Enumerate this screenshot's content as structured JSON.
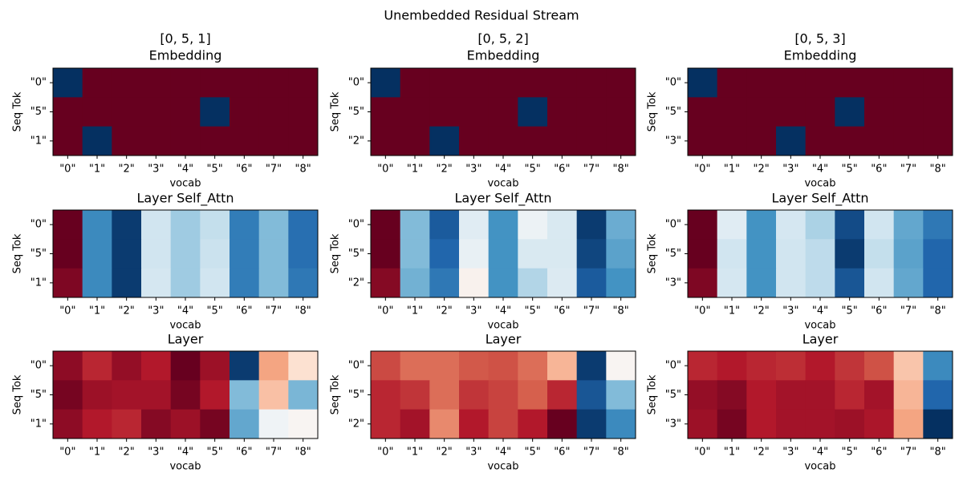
{
  "title": "Unembedded Residual Stream",
  "chart_data": [
    {
      "type": "heatmap",
      "title": "[0, 5, 1]",
      "subtitle": "Embedding",
      "x_label": "vocab",
      "y_label": "Seq Tok",
      "colormap": "RdBu",
      "vlim": [
        0,
        1
      ],
      "categories": [
        "\"0\"",
        "\"1\"",
        "\"2\"",
        "\"3\"",
        "\"4\"",
        "\"5\"",
        "\"6\"",
        "\"7\"",
        "\"8\""
      ],
      "rows": [
        "\"0\"",
        "\"5\"",
        "\"1\""
      ],
      "values": [
        [
          1,
          0,
          0,
          0,
          0,
          0,
          0,
          0,
          0
        ],
        [
          0,
          0,
          0,
          0,
          0,
          1,
          0,
          0,
          0
        ],
        [
          0,
          1,
          0,
          0,
          0,
          0,
          0,
          0,
          0
        ]
      ]
    },
    {
      "type": "heatmap",
      "title": "[0, 5, 2]",
      "subtitle": "Embedding",
      "x_label": "vocab",
      "y_label": "Seq Tok",
      "colormap": "RdBu",
      "vlim": [
        0,
        1
      ],
      "categories": [
        "\"0\"",
        "\"1\"",
        "\"2\"",
        "\"3\"",
        "\"4\"",
        "\"5\"",
        "\"6\"",
        "\"7\"",
        "\"8\""
      ],
      "rows": [
        "\"0\"",
        "\"5\"",
        "\"2\""
      ],
      "values": [
        [
          1,
          0,
          0,
          0,
          0,
          0,
          0,
          0,
          0
        ],
        [
          0,
          0,
          0,
          0,
          0,
          1,
          0,
          0,
          0
        ],
        [
          0,
          0,
          1,
          0,
          0,
          0,
          0,
          0,
          0
        ]
      ]
    },
    {
      "type": "heatmap",
      "title": "[0, 5, 3]",
      "subtitle": "Embedding",
      "x_label": "vocab",
      "y_label": "Seq Tok",
      "colormap": "RdBu",
      "vlim": [
        0,
        1
      ],
      "categories": [
        "\"0\"",
        "\"1\"",
        "\"2\"",
        "\"3\"",
        "\"4\"",
        "\"5\"",
        "\"6\"",
        "\"7\"",
        "\"8\""
      ],
      "rows": [
        "\"0\"",
        "\"5\"",
        "\"3\""
      ],
      "values": [
        [
          1,
          0,
          0,
          0,
          0,
          0,
          0,
          0,
          0
        ],
        [
          0,
          0,
          0,
          0,
          0,
          1,
          0,
          0,
          0
        ],
        [
          0,
          0,
          0,
          1,
          0,
          0,
          0,
          0,
          0
        ]
      ]
    },
    {
      "type": "heatmap",
      "title": "Layer Self_Attn",
      "x_label": "vocab",
      "y_label": "Seq Tok",
      "colormap": "RdBu",
      "vlim": [
        0,
        1
      ],
      "categories": [
        "\"0\"",
        "\"1\"",
        "\"2\"",
        "\"3\"",
        "\"4\"",
        "\"5\"",
        "\"6\"",
        "\"7\"",
        "\"8\""
      ],
      "rows": [
        "\"0\"",
        "\"5\"",
        "\"1\""
      ],
      "values": [
        [
          0,
          0.82,
          0.98,
          0.6,
          0.68,
          0.62,
          0.85,
          0.72,
          0.88
        ],
        [
          0,
          0.82,
          0.98,
          0.6,
          0.68,
          0.61,
          0.85,
          0.72,
          0.88
        ],
        [
          0.03,
          0.82,
          0.98,
          0.59,
          0.68,
          0.6,
          0.85,
          0.72,
          0.86
        ]
      ]
    },
    {
      "type": "heatmap",
      "title": "Layer Self_Attn",
      "x_label": "vocab",
      "y_label": "Seq Tok",
      "colormap": "RdBu",
      "vlim": [
        0,
        1
      ],
      "categories": [
        "\"0\"",
        "\"1\"",
        "\"2\"",
        "\"3\"",
        "\"4\"",
        "\"5\"",
        "\"6\"",
        "\"7\"",
        "\"8\""
      ],
      "rows": [
        "\"0\"",
        "\"5\"",
        "\"2\""
      ],
      "values": [
        [
          0,
          0.72,
          0.92,
          0.56,
          0.8,
          0.53,
          0.58,
          0.98,
          0.75
        ],
        [
          0,
          0.72,
          0.9,
          0.54,
          0.8,
          0.58,
          0.58,
          0.96,
          0.77
        ],
        [
          0.04,
          0.74,
          0.86,
          0.48,
          0.8,
          0.65,
          0.57,
          0.92,
          0.8
        ]
      ]
    },
    {
      "type": "heatmap",
      "title": "Layer Self_Attn",
      "x_label": "vocab",
      "y_label": "Seq Tok",
      "colormap": "RdBu",
      "vlim": [
        0,
        1
      ],
      "categories": [
        "\"0\"",
        "\"1\"",
        "\"2\"",
        "\"3\"",
        "\"4\"",
        "\"5\"",
        "\"6\"",
        "\"7\"",
        "\"8\""
      ],
      "rows": [
        "\"0\"",
        "\"5\"",
        "\"3\""
      ],
      "values": [
        [
          0,
          0.56,
          0.8,
          0.59,
          0.66,
          0.95,
          0.6,
          0.76,
          0.86
        ],
        [
          0,
          0.6,
          0.8,
          0.6,
          0.63,
          0.98,
          0.62,
          0.77,
          0.9
        ],
        [
          0.03,
          0.59,
          0.8,
          0.6,
          0.63,
          0.93,
          0.6,
          0.76,
          0.9
        ]
      ]
    },
    {
      "type": "heatmap",
      "title": "Layer",
      "x_label": "vocab",
      "y_label": "Seq Tok",
      "colormap": "RdBu",
      "vlim": [
        0,
        1
      ],
      "categories": [
        "\"0\"",
        "\"1\"",
        "\"2\"",
        "\"3\"",
        "\"4\"",
        "\"5\"",
        "\"6\"",
        "\"7\"",
        "\"8\""
      ],
      "rows": [
        "\"0\"",
        "\"5\"",
        "\"1\""
      ],
      "values": [
        [
          0.05,
          0.12,
          0.06,
          0.1,
          0,
          0.07,
          0.98,
          0.3,
          0.42
        ],
        [
          0.02,
          0.07,
          0.08,
          0.08,
          0.02,
          0.1,
          0.72,
          0.35,
          0.73
        ],
        [
          0.05,
          0.1,
          0.12,
          0.04,
          0.07,
          0.02,
          0.76,
          0.52,
          0.49
        ]
      ]
    },
    {
      "type": "heatmap",
      "title": "Layer",
      "x_label": "vocab",
      "y_label": "Seq Tok",
      "colormap": "RdBu",
      "vlim": [
        0,
        1
      ],
      "categories": [
        "\"0\"",
        "\"1\"",
        "\"2\"",
        "\"3\"",
        "\"4\"",
        "\"5\"",
        "\"6\"",
        "\"7\"",
        "\"8\""
      ],
      "rows": [
        "\"0\"",
        "\"5\"",
        "\"2\""
      ],
      "values": [
        [
          0.17,
          0.22,
          0.22,
          0.19,
          0.18,
          0.22,
          0.33,
          0.98,
          0.49
        ],
        [
          0.12,
          0.14,
          0.22,
          0.14,
          0.16,
          0.2,
          0.12,
          0.93,
          0.72
        ],
        [
          0.12,
          0.08,
          0.26,
          0.1,
          0.16,
          0.1,
          0,
          0.98,
          0.82
        ]
      ]
    },
    {
      "type": "heatmap",
      "title": "Layer",
      "x_label": "vocab",
      "y_label": "Seq Tok",
      "colormap": "RdBu",
      "vlim": [
        0,
        1
      ],
      "categories": [
        "\"0\"",
        "\"1\"",
        "\"2\"",
        "\"3\"",
        "\"4\"",
        "\"5\"",
        "\"6\"",
        "\"7\"",
        "\"8\""
      ],
      "rows": [
        "\"0\"",
        "\"5\"",
        "\"3\""
      ],
      "values": [
        [
          0.12,
          0.1,
          0.12,
          0.13,
          0.1,
          0.14,
          0.18,
          0.36,
          0.82
        ],
        [
          0.06,
          0.04,
          0.1,
          0.08,
          0.08,
          0.12,
          0.08,
          0.33,
          0.9
        ],
        [
          0.07,
          0.02,
          0.1,
          0.08,
          0.08,
          0.07,
          0.09,
          0.3,
          1
        ]
      ]
    }
  ]
}
